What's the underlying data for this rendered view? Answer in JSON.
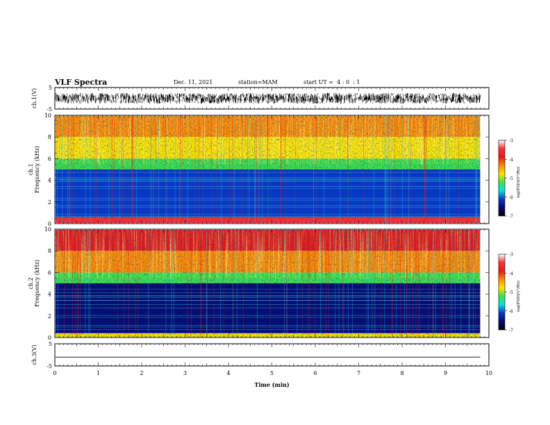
{
  "header": {
    "title": "VLF Spectra",
    "date": "Dec. 11, 2021",
    "station": "station=MAM",
    "start": "start UT =  4 : 0  : 1"
  },
  "chart_data": [
    {
      "type": "line",
      "name": "ch1-waveform",
      "ylabel": "ch.1(V)",
      "ylim": [
        -5,
        5
      ],
      "ytick_labels": [
        "5",
        "-5"
      ],
      "xlim": [
        0,
        10
      ],
      "signal_range": [
        -2.5,
        2.5
      ],
      "data_end_min": 9.8,
      "color": "#000000"
    },
    {
      "type": "heatmap",
      "name": "ch1-spectrogram",
      "ylabel": "ch.1\nFrequency (kHz)",
      "ylabel_lines": [
        "ch.1",
        "Frequency (kHz)"
      ],
      "ylim": [
        0,
        10
      ],
      "yticks": [
        0,
        2,
        4,
        6,
        8,
        10
      ],
      "xlim": [
        0,
        10
      ],
      "data_end_min": 9.8,
      "colorbar": {
        "label": "log(PSD)(V²/Hz)",
        "range": [
          -7,
          -3
        ],
        "tick_labels": [
          "-3",
          "-4",
          "-5",
          "-6",
          "-7"
        ],
        "colormap": [
          "#ffffff",
          "#ff3030",
          "#e41a1a",
          "#ff8a00",
          "#ffe400",
          "#3fe04a",
          "#00e0e0",
          "#0a37c8",
          "#050a70",
          "#000000"
        ]
      },
      "bands": [
        {
          "freq_khz": [
            0,
            0.6
          ],
          "log_psd": -3.6
        },
        {
          "freq_khz": [
            0.6,
            5
          ],
          "log_psd": -6.2
        },
        {
          "freq_khz": [
            5,
            6
          ],
          "log_psd": -5.4
        },
        {
          "freq_khz": [
            6,
            8
          ],
          "log_psd": -4.8
        },
        {
          "freq_khz": [
            8,
            10
          ],
          "log_psd": -4.3
        }
      ]
    },
    {
      "type": "heatmap",
      "name": "ch2-spectrogram",
      "ylabel": "ch.2\nFrequency (kHz)",
      "ylabel_lines": [
        "ch.2",
        "Frequency (kHz)"
      ],
      "ylim": [
        0,
        10
      ],
      "yticks": [
        0,
        2,
        4,
        6,
        8,
        10
      ],
      "xlim": [
        0,
        10
      ],
      "data_end_min": 9.8,
      "colorbar": {
        "label": "log(PSD)(V²/Hz)",
        "range": [
          -7,
          -3
        ],
        "tick_labels": [
          "-3",
          "-4",
          "-5",
          "-6",
          "-7"
        ],
        "colormap": [
          "#ffffff",
          "#ff3030",
          "#e41a1a",
          "#ff8a00",
          "#ffe400",
          "#3fe04a",
          "#00e0e0",
          "#0a37c8",
          "#050a70",
          "#000000"
        ]
      },
      "bands": [
        {
          "freq_khz": [
            0,
            0.4
          ],
          "log_psd": -4.8
        },
        {
          "freq_khz": [
            0.4,
            5
          ],
          "log_psd": -6.4
        },
        {
          "freq_khz": [
            5,
            6
          ],
          "log_psd": -5.3
        },
        {
          "freq_khz": [
            6,
            8
          ],
          "log_psd": -4.4
        },
        {
          "freq_khz": [
            8,
            10
          ],
          "log_psd": -3.9
        }
      ]
    },
    {
      "type": "line",
      "name": "ch3-waveform",
      "ylabel": "ch.3(V)",
      "ylim": [
        -5,
        5
      ],
      "ytick_labels": [
        "5",
        "-5"
      ],
      "xlim": [
        0,
        10
      ],
      "signal_value": -1.0,
      "data_end_min": 9.8,
      "color": "#000000"
    }
  ],
  "xaxis": {
    "label": "Time (min)",
    "ticks": [
      0,
      1,
      2,
      3,
      4,
      5,
      6,
      7,
      8,
      9,
      10
    ],
    "tick_labels": [
      "0",
      "1",
      "2",
      "3",
      "4",
      "5",
      "6",
      "7",
      "8",
      "9",
      "10"
    ]
  }
}
